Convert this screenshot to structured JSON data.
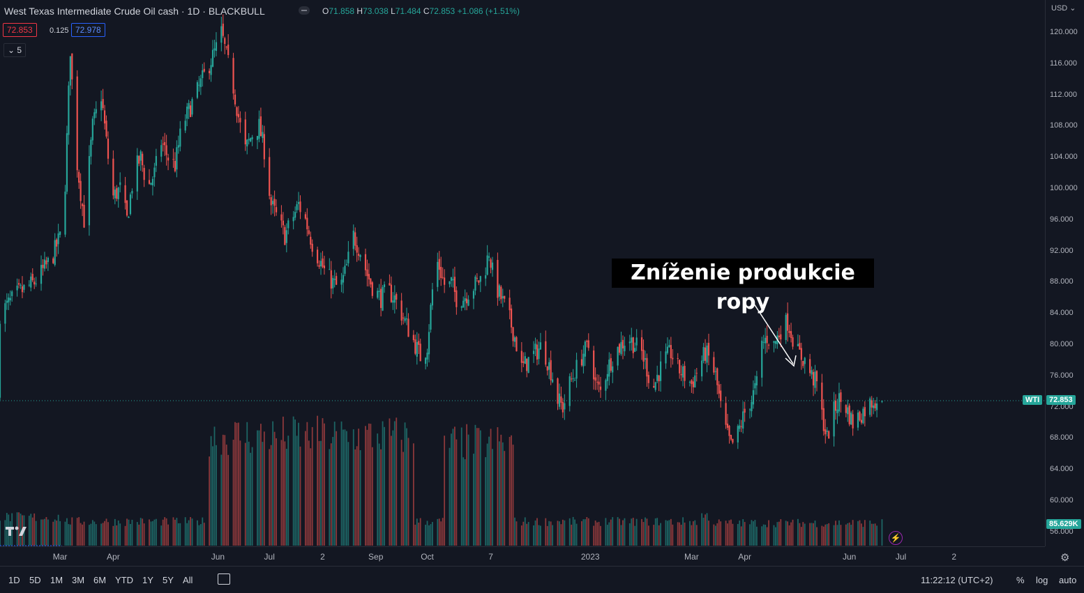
{
  "header": {
    "title": "West Texas Intermediate Crude Oil cash · 1D · BLACKBULL",
    "ohlc": {
      "o_label": "O",
      "o": "71.858",
      "h_label": "H",
      "h": "73.038",
      "l_label": "L",
      "l": "71.484",
      "c_label": "C",
      "c": "72.853",
      "change": "+1.086 (+1.51%)"
    }
  },
  "trade": {
    "sell": "72.853",
    "spread": "0.125",
    "buy": "72.978"
  },
  "indicator_toggle": "5",
  "annotation": "Zníženie produkcie ropy",
  "price_axis": {
    "currency": "USD",
    "symbol_tag": "WTI",
    "last_price": "72.853",
    "volume_tag": "85.629K"
  },
  "bottom_bar": {
    "timeframes": [
      "1D",
      "5D",
      "1M",
      "3M",
      "6M",
      "YTD",
      "1Y",
      "5Y",
      "All"
    ],
    "clock": "11:22:12 (UTC+2)",
    "options": [
      "%",
      "log",
      "auto"
    ]
  },
  "colors": {
    "up": "#26a69a",
    "down": "#ef5350",
    "background": "#131722",
    "grid": "#2a2e39"
  },
  "chart_data": {
    "type": "candlestick",
    "symbol": "WTI",
    "ylim": [
      54,
      122
    ],
    "y_ticks": [
      "56.000",
      "60.000",
      "64.000",
      "68.000",
      "72.000",
      "76.000",
      "80.000",
      "84.000",
      "88.000",
      "92.000",
      "96.000",
      "100.000",
      "104.000",
      "108.000",
      "112.000",
      "116.000",
      "120.000"
    ],
    "x_ticks": [
      {
        "label": "Mar",
        "day": 25
      },
      {
        "label": "Apr",
        "day": 56
      },
      {
        "label": "Jun",
        "day": 117
      },
      {
        "label": "Jul",
        "day": 147
      },
      {
        "label": "2",
        "day": 178
      },
      {
        "label": "Sep",
        "day": 209
      },
      {
        "label": "Oct",
        "day": 239
      },
      {
        "label": "7",
        "day": 276
      },
      {
        "label": "2023",
        "day": 334
      },
      {
        "label": "Mar",
        "day": 393
      },
      {
        "label": "Apr",
        "day": 424
      },
      {
        "label": "Jun",
        "day": 485
      },
      {
        "label": "Jul",
        "day": 515
      },
      {
        "label": "2",
        "day": 546
      }
    ],
    "last_price": 72.853,
    "close_path": [
      [
        -10,
        84.0
      ],
      [
        0,
        86.5
      ],
      [
        10,
        88.0
      ],
      [
        20,
        91.0
      ],
      [
        27,
        95.0
      ],
      [
        31,
        118.0
      ],
      [
        34,
        105.0
      ],
      [
        39,
        96.0
      ],
      [
        44,
        108.0
      ],
      [
        49,
        112.0
      ],
      [
        53,
        104.0
      ],
      [
        56,
        99.0
      ],
      [
        60,
        100.0
      ],
      [
        64,
        96.0
      ],
      [
        68,
        102.0
      ],
      [
        72,
        104.0
      ],
      [
        76,
        100.0
      ],
      [
        80,
        102.0
      ],
      [
        84,
        106.0
      ],
      [
        88,
        104.0
      ],
      [
        92,
        103.0
      ],
      [
        96,
        108.0
      ],
      [
        100,
        110.0
      ],
      [
        104,
        112.0
      ],
      [
        108,
        114.0
      ],
      [
        112,
        116.0
      ],
      [
        116,
        118.0
      ],
      [
        119,
        120.0
      ],
      [
        122,
        117.0
      ],
      [
        126,
        113.0
      ],
      [
        130,
        108.0
      ],
      [
        133,
        105.0
      ],
      [
        137,
        107.0
      ],
      [
        141,
        108.0
      ],
      [
        144,
        105.0
      ],
      [
        148,
        98.0
      ],
      [
        152,
        96.0
      ],
      [
        156,
        94.0
      ],
      [
        160,
        96.0
      ],
      [
        164,
        98.0
      ],
      [
        168,
        96.0
      ],
      [
        172,
        93.0
      ],
      [
        176,
        91.0
      ],
      [
        180,
        89.0
      ],
      [
        184,
        88.0
      ],
      [
        188,
        87.0
      ],
      [
        192,
        90.0
      ],
      [
        196,
        94.0
      ],
      [
        200,
        92.0
      ],
      [
        204,
        89.0
      ],
      [
        208,
        87.0
      ],
      [
        212,
        86.0
      ],
      [
        216,
        87.0
      ],
      [
        220,
        86.0
      ],
      [
        224,
        84.0
      ],
      [
        228,
        82.0
      ],
      [
        232,
        80.0
      ],
      [
        236,
        78.0
      ],
      [
        239,
        80.0
      ],
      [
        242,
        87.0
      ],
      [
        244,
        91.0
      ],
      [
        246,
        90.0
      ],
      [
        250,
        87.0
      ],
      [
        253,
        88.0
      ],
      [
        256,
        86.0
      ],
      [
        260,
        86.0
      ],
      [
        264,
        87.0
      ],
      [
        268,
        88.0
      ],
      [
        272,
        89.0
      ],
      [
        275,
        92.0
      ],
      [
        278,
        88.0
      ],
      [
        282,
        86.0
      ],
      [
        286,
        84.0
      ],
      [
        290,
        81.0
      ],
      [
        294,
        77.0
      ],
      [
        298,
        78.0
      ],
      [
        302,
        79.0
      ],
      [
        306,
        80.0
      ],
      [
        309,
        78.0
      ],
      [
        312,
        76.0
      ],
      [
        315,
        73.0
      ],
      [
        318,
        72.0
      ],
      [
        322,
        75.0
      ],
      [
        326,
        77.0
      ],
      [
        330,
        79.0
      ],
      [
        334,
        80.0
      ],
      [
        337,
        75.0
      ],
      [
        340,
        74.0
      ],
      [
        344,
        77.0
      ],
      [
        348,
        79.0
      ],
      [
        352,
        80.0
      ],
      [
        356,
        81.0
      ],
      [
        360,
        80.0
      ],
      [
        364,
        79.0
      ],
      [
        367,
        77.0
      ],
      [
        370,
        74.0
      ],
      [
        373,
        76.0
      ],
      [
        377,
        78.0
      ],
      [
        381,
        79.0
      ],
      [
        385,
        77.0
      ],
      [
        389,
        76.0
      ],
      [
        393,
        75.0
      ],
      [
        397,
        77.0
      ],
      [
        401,
        79.0
      ],
      [
        404,
        78.0
      ],
      [
        407,
        76.0
      ],
      [
        410,
        72.0
      ],
      [
        413,
        69.0
      ],
      [
        416,
        67.0
      ],
      [
        419,
        68.0
      ],
      [
        422,
        70.0
      ],
      [
        425,
        72.0
      ],
      [
        428,
        73.0
      ],
      [
        431,
        75.0
      ],
      [
        434,
        80.0
      ],
      [
        437,
        81.0
      ],
      [
        441,
        80.0
      ],
      [
        445,
        82.0
      ],
      [
        449,
        83.0
      ],
      [
        452,
        81.0
      ],
      [
        455,
        79.0
      ],
      [
        459,
        78.0
      ],
      [
        463,
        76.0
      ],
      [
        466,
        75.0
      ],
      [
        469,
        71.0
      ],
      [
        472,
        68.0
      ],
      [
        475,
        71.0
      ],
      [
        479,
        73.0
      ],
      [
        483,
        72.0
      ],
      [
        487,
        70.0
      ],
      [
        491,
        71.0
      ],
      [
        495,
        72.0
      ],
      [
        499,
        73.0
      ],
      [
        503,
        72.9
      ]
    ],
    "volume_periods": [
      {
        "from": -10,
        "to": 26,
        "level": 0.4,
        "gap": true
      },
      {
        "from": 26,
        "to": 110,
        "level": 0.34
      },
      {
        "from": 110,
        "to": 232,
        "level": 1.55
      },
      {
        "from": 232,
        "to": 249,
        "level": 0.34
      },
      {
        "from": 249,
        "to": 290,
        "level": 1.45
      },
      {
        "from": 290,
        "to": 397,
        "level": 0.34
      },
      {
        "from": 397,
        "to": 405,
        "level": 0.42
      },
      {
        "from": 405,
        "to": 505,
        "level": 0.32
      }
    ],
    "volume_last": "85.629K"
  }
}
